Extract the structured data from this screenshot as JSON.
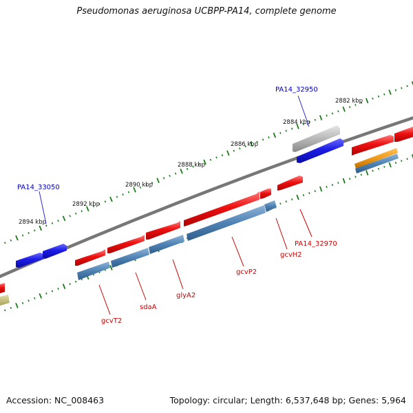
{
  "title": "Pseudomonas aeruginosa UCBPP-PA14, complete genome",
  "footer": {
    "accession": "Accession: NC_008463",
    "topology": "Topology: circular; Length: 6,537,648 bp; Genes: 5,964"
  },
  "colors": {
    "backbone": "#777777",
    "tick": "#1a7a1a",
    "gene_forward": "#ee1111",
    "gene_reverse": "#2a2ae8",
    "cds_track": "#4f82b4",
    "pseudo_track": "#b8b8b8",
    "rna_track": "#ee9a1a",
    "label_forward": "#cc0000",
    "label_reverse": "#0000bb",
    "olive_feature": "#c8c47a"
  },
  "scale": {
    "unit": "kbp",
    "labels": [
      "2882 kbp",
      "2884 kbp",
      "2886 kbp",
      "2888 kbp",
      "2890 kbp",
      "2892 kbp",
      "2894 kbp"
    ]
  },
  "gene_labels": {
    "pa14_32950": "PA14_32950",
    "pa14_33050": "PA14_33050",
    "gcvt2": "gcvT2",
    "sdaa": "sdaA",
    "glya2": "glyA2",
    "gcvp2": "gcvP2",
    "gcvh2": "gcvH2",
    "pa14_32970": "PA14_32970"
  }
}
